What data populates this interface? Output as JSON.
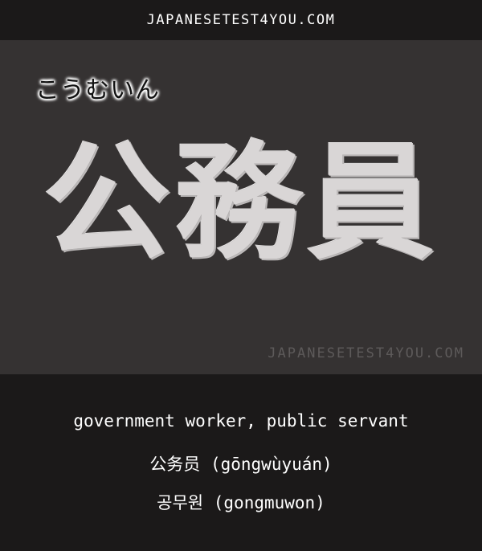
{
  "header": {
    "site": "JAPANESETEST4YOU.COM"
  },
  "card": {
    "reading": "こうむいん",
    "kanji": "公務員",
    "watermark": "JAPANESETEST4YOU.COM"
  },
  "translations": {
    "english": "government worker, public servant",
    "chinese": "公务员 (gōngwùyuán)",
    "korean": "공무원 (gongmuwon)"
  },
  "colors": {
    "background": "#1b1919",
    "card": "#353232",
    "kanji": "#d9d6d6",
    "text": "#ffffff"
  }
}
